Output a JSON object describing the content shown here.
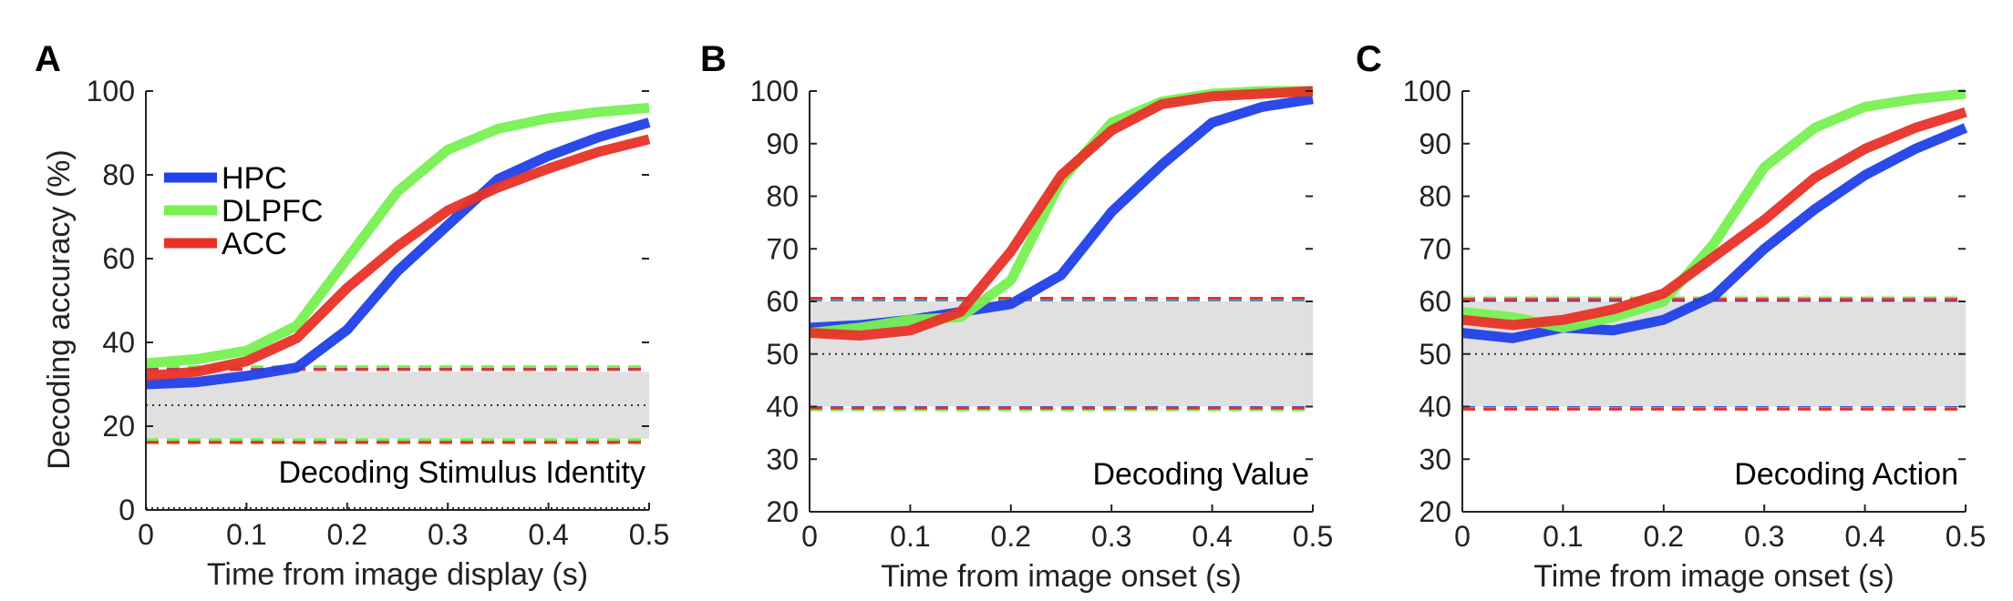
{
  "chart_data": [
    {
      "type": "line",
      "panel": "A",
      "title": "Decoding Stimulus Identity",
      "xlabel": "Time from image display (s)",
      "ylabel": "Decoding accuracy (%)",
      "xlim": [
        0,
        0.5
      ],
      "ylim": [
        0,
        100
      ],
      "xticks": [
        "0",
        "0.1",
        "0.2",
        "0.3",
        "0.4",
        "0.5"
      ],
      "yticks": [
        "0",
        "20",
        "40",
        "60",
        "80",
        "100"
      ],
      "x": [
        0,
        0.05,
        0.1,
        0.15,
        0.2,
        0.25,
        0.3,
        0.35,
        0.4,
        0.45,
        0.5
      ],
      "chance": 25,
      "null_band": [
        17,
        33
      ],
      "legend_position": "upper-left",
      "series": [
        {
          "name": "HPC",
          "color": "#2040e8",
          "values": [
            30,
            30.5,
            32,
            34,
            43,
            57,
            68,
            79,
            84.5,
            89,
            92.5
          ]
        },
        {
          "name": "DLPFC",
          "color": "#78f052",
          "values": [
            35,
            36,
            38,
            44,
            60,
            76,
            86,
            91,
            93.5,
            95,
            96
          ]
        },
        {
          "name": "ACC",
          "color": "#e83228",
          "values": [
            32,
            33,
            35.5,
            41,
            53,
            63,
            71.5,
            77,
            81.5,
            85.5,
            88.5
          ]
        }
      ],
      "threshold_lines": [
        {
          "color": "#2040e8",
          "values": [
            33.8,
            16.4
          ]
        },
        {
          "color": "#78f052",
          "values": [
            34.2,
            16.8
          ]
        },
        {
          "color": "#e83228",
          "values": [
            33.5,
            16.1
          ]
        }
      ]
    },
    {
      "type": "line",
      "panel": "B",
      "title": "Decoding Value",
      "xlabel": "Time from image onset (s)",
      "ylabel": "",
      "xlim": [
        0,
        0.5
      ],
      "ylim": [
        20,
        100
      ],
      "xticks": [
        "0",
        "0.1",
        "0.2",
        "0.3",
        "0.4",
        "0.5"
      ],
      "yticks": [
        "20",
        "30",
        "40",
        "50",
        "60",
        "70",
        "80",
        "90",
        "100"
      ],
      "x": [
        0,
        0.05,
        0.1,
        0.15,
        0.2,
        0.25,
        0.3,
        0.35,
        0.4,
        0.45,
        0.5
      ],
      "chance": 50,
      "null_band": [
        40,
        60
      ],
      "series": [
        {
          "name": "HPC",
          "color": "#2040e8",
          "values": [
            55,
            55.5,
            56.5,
            58,
            59.5,
            65,
            77,
            86,
            94,
            97,
            98.5
          ]
        },
        {
          "name": "DLPFC",
          "color": "#78f052",
          "values": [
            54,
            55,
            56.5,
            57,
            64,
            83,
            94,
            98,
            99.5,
            100,
            100
          ]
        },
        {
          "name": "ACC",
          "color": "#e83228",
          "values": [
            54,
            53.5,
            54.5,
            58,
            69.5,
            84,
            92.5,
            97.5,
            99,
            99.5,
            100
          ]
        }
      ],
      "threshold_lines": [
        {
          "color": "#2040e8",
          "values": [
            60.3,
            39.8
          ]
        },
        {
          "color": "#78f052",
          "values": [
            60.5,
            39.4
          ]
        },
        {
          "color": "#e83228",
          "values": [
            60.6,
            39.7
          ]
        }
      ]
    },
    {
      "type": "line",
      "panel": "C",
      "title": "Decoding Action",
      "xlabel": "Time from image onset (s)",
      "ylabel": "",
      "xlim": [
        0,
        0.5
      ],
      "ylim": [
        20,
        100
      ],
      "xticks": [
        "0",
        "0.1",
        "0.2",
        "0.3",
        "0.4",
        "0.5"
      ],
      "yticks": [
        "20",
        "30",
        "40",
        "50",
        "60",
        "70",
        "80",
        "90",
        "100"
      ],
      "x": [
        0,
        0.05,
        0.1,
        0.15,
        0.2,
        0.25,
        0.3,
        0.35,
        0.4,
        0.45,
        0.5
      ],
      "chance": 50,
      "null_band": [
        40,
        60
      ],
      "series": [
        {
          "name": "HPC",
          "color": "#2040e8",
          "values": [
            54,
            53,
            55,
            54.5,
            56.5,
            61,
            70,
            77.5,
            84,
            89,
            93
          ]
        },
        {
          "name": "DLPFC",
          "color": "#78f052",
          "values": [
            58,
            57,
            55,
            57,
            60,
            71,
            85.5,
            93,
            97,
            98.5,
            99.5
          ]
        },
        {
          "name": "ACC",
          "color": "#e83228",
          "values": [
            56.5,
            55.5,
            56.5,
            58.5,
            61.5,
            68.5,
            75.5,
            83.5,
            89,
            93,
            96
          ]
        }
      ],
      "threshold_lines": [
        {
          "color": "#2040e8",
          "values": [
            60.2,
            39.8
          ]
        },
        {
          "color": "#78f052",
          "values": [
            60.7,
            39.6
          ]
        },
        {
          "color": "#e83228",
          "values": [
            60.4,
            39.5
          ]
        }
      ]
    }
  ]
}
